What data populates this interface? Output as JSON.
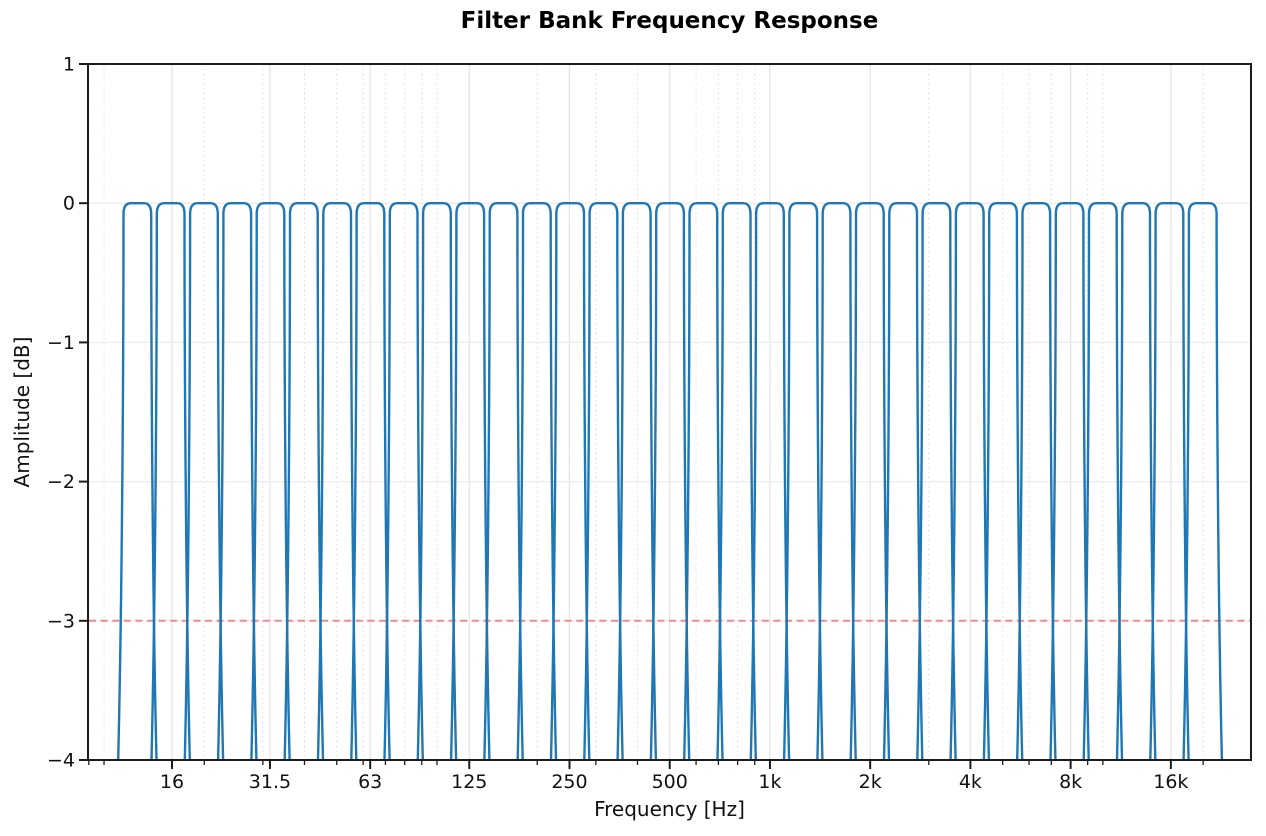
{
  "chart_data": {
    "type": "line",
    "title": "Filter Bank Frequency Response",
    "xlabel": "Frequency [Hz]",
    "ylabel": "Amplitude [dB]",
    "x_scale": "log",
    "xlim": [
      8.95,
      27850
    ],
    "ylim": [
      -4,
      1
    ],
    "grid": true,
    "minor_grid": true,
    "legend": "none",
    "x_ticks": [
      {
        "value": 16,
        "label": "16"
      },
      {
        "value": 31.5,
        "label": "31.5"
      },
      {
        "value": 63,
        "label": "63"
      },
      {
        "value": 125,
        "label": "125"
      },
      {
        "value": 250,
        "label": "250"
      },
      {
        "value": 500,
        "label": "500"
      },
      {
        "value": 1000,
        "label": "1k"
      },
      {
        "value": 2000,
        "label": "2k"
      },
      {
        "value": 4000,
        "label": "4k"
      },
      {
        "value": 8000,
        "label": "8k"
      },
      {
        "value": 16000,
        "label": "16k"
      }
    ],
    "x_minor_ticks": [
      9,
      10,
      20,
      30,
      40,
      50,
      60,
      70,
      80,
      90,
      100,
      200,
      300,
      400,
      600,
      700,
      800,
      900,
      3000,
      5000,
      6000,
      7000,
      9000,
      10000,
      20000
    ],
    "y_ticks": [
      {
        "value": 1,
        "label": "1"
      },
      {
        "value": 0,
        "label": "0"
      },
      {
        "value": -1,
        "label": "−1"
      },
      {
        "value": -2,
        "label": "−2"
      },
      {
        "value": -3,
        "label": "−3"
      },
      {
        "value": -4,
        "label": "−4"
      }
    ],
    "bands": {
      "count": 33,
      "bandwidth": "1/3 octave",
      "passband_level_db": 0,
      "band_edge_factor": 1.122,
      "center_frequencies_hz": [
        12.59,
        15.85,
        19.95,
        25.12,
        31.62,
        39.81,
        50.12,
        63.1,
        79.43,
        100,
        125.89,
        158.49,
        199.53,
        251.19,
        316.23,
        398.11,
        501.19,
        630.96,
        794.33,
        1000,
        1258.93,
        1584.89,
        1995.26,
        2511.89,
        3162.28,
        3981.07,
        5011.87,
        6309.57,
        7943.28,
        10000,
        12589.25,
        15848.93,
        19952.62
      ]
    },
    "threshold_line": {
      "value_db": -3,
      "style": "dashed",
      "color": "#ee8c8c"
    },
    "series_color": "#1f77b4",
    "colors": {
      "major_grid": "#e5e5e5",
      "minor_grid": "#dedede",
      "spine": "#1c1c1c",
      "text": "#111111"
    }
  }
}
